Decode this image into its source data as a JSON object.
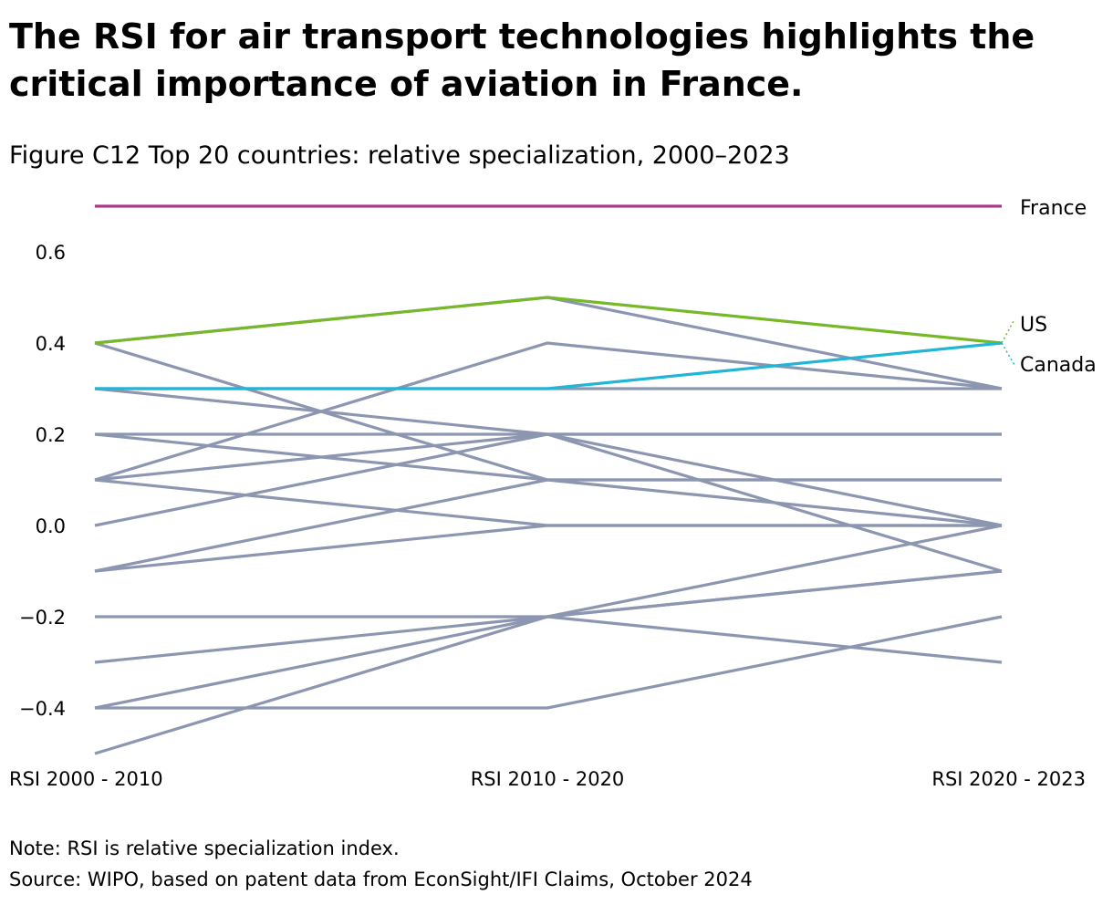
{
  "title": "The RSI for air transport technologies highlights the critical importance of aviation in France.",
  "subtitle": "Figure C12 Top 20 countries: relative specialization, 2000–2023",
  "note": "Note: RSI is relative specialization index.",
  "source": "Source: WIPO, based on patent data from EconSight/IFI Claims, October 2024",
  "chart_data": {
    "type": "line",
    "title": "Top 20 countries: relative specialization, 2000–2023",
    "categories": [
      "RSI 2000 - 2010",
      "RSI 2010 - 2020",
      "RSI 2020 - 2023"
    ],
    "yticks": [
      "0.6",
      "0.4",
      "0.2",
      "0.0",
      "−0.2",
      "−0.4"
    ],
    "ytick_values": [
      0.6,
      0.4,
      0.2,
      0.0,
      -0.2,
      -0.4
    ],
    "ylim": [
      -0.5,
      0.7
    ],
    "highlight_colors": {
      "France": "#b03a8a",
      "US": "#77b82a",
      "Canada": "#22b5d6",
      "other": "#8d96b0"
    },
    "series": [
      {
        "name": "France",
        "values": [
          0.7,
          0.7,
          0.7
        ],
        "labeled": true
      },
      {
        "name": "US",
        "values": [
          0.4,
          0.5,
          0.4
        ],
        "labeled": true
      },
      {
        "name": "Canada",
        "values": [
          0.3,
          0.3,
          0.4
        ],
        "labeled": true
      },
      {
        "name": "",
        "values": [
          0.4,
          0.5,
          0.3
        ]
      },
      {
        "name": "",
        "values": [
          0.4,
          0.1,
          0.0
        ]
      },
      {
        "name": "",
        "values": [
          0.3,
          0.2,
          0.0
        ]
      },
      {
        "name": "",
        "values": [
          0.3,
          0.3,
          0.3
        ]
      },
      {
        "name": "",
        "values": [
          0.2,
          0.2,
          0.2
        ]
      },
      {
        "name": "",
        "values": [
          0.2,
          0.1,
          0.1
        ]
      },
      {
        "name": "",
        "values": [
          0.1,
          0.4,
          0.3
        ]
      },
      {
        "name": "",
        "values": [
          0.1,
          0.2,
          -0.1
        ]
      },
      {
        "name": "",
        "values": [
          0.1,
          0.0,
          0.0
        ]
      },
      {
        "name": "",
        "values": [
          0.0,
          0.2,
          0.2
        ]
      },
      {
        "name": "",
        "values": [
          -0.1,
          0.1,
          0.1
        ]
      },
      {
        "name": "",
        "values": [
          -0.1,
          0.0,
          0.0
        ]
      },
      {
        "name": "",
        "values": [
          -0.2,
          -0.2,
          -0.3
        ]
      },
      {
        "name": "",
        "values": [
          -0.3,
          -0.2,
          0.0
        ]
      },
      {
        "name": "",
        "values": [
          -0.4,
          -0.2,
          -0.1
        ]
      },
      {
        "name": "",
        "values": [
          -0.4,
          -0.4,
          -0.2
        ]
      },
      {
        "name": "",
        "values": [
          -0.5,
          -0.2,
          -0.1
        ]
      }
    ]
  }
}
